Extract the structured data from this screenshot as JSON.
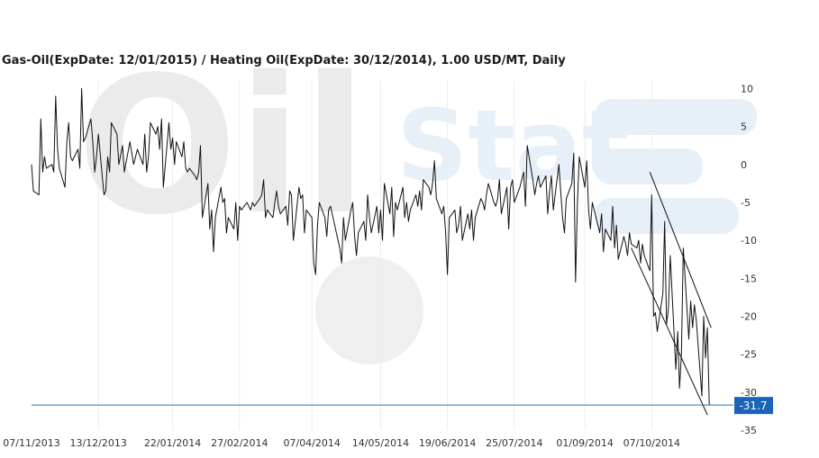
{
  "colors": {
    "series": "#111111",
    "current_line": "#2f6fb5",
    "current_badge": "#1a63b6",
    "gridline": "#ececec",
    "watermark_gray": "#ebebeb",
    "watermark_blue": "#e7f0f8"
  },
  "watermark": {
    "text1": "Oil",
    "text2": "Stat"
  },
  "chart_data": {
    "type": "line",
    "title": "Gas-Oil(ExpDate: 12/01/2015) / Heating Oil(ExpDate: 30/12/2014), 1.00 USD/MT, Daily",
    "x_tick_labels": [
      "07/11/2013",
      "13/12/2013",
      "22/01/2014",
      "27/02/2014",
      "07/04/2014",
      "14/05/2014",
      "19/06/2014",
      "25/07/2014",
      "01/09/2014",
      "07/10/2014"
    ],
    "y_ticks": [
      10,
      5,
      0,
      -5,
      -10,
      -15,
      -20,
      -25,
      -30,
      -35
    ],
    "ylim": [
      -35,
      11
    ],
    "xlim": [
      "2013-11-07",
      "2014-11-20"
    ],
    "grid": "vertical",
    "y_axis_position": "right",
    "current_value": -31.7,
    "current_value_label": "-31.7",
    "series": [
      {
        "points": [
          [
            "2013-11-07",
            0
          ],
          [
            "2013-11-08",
            -3.5
          ],
          [
            "2013-11-11",
            -4
          ],
          [
            "2013-11-12",
            6
          ],
          [
            "2013-11-13",
            -1
          ],
          [
            "2013-11-14",
            1
          ],
          [
            "2013-11-15",
            -0.5
          ],
          [
            "2013-11-18",
            0
          ],
          [
            "2013-11-19",
            -1
          ],
          [
            "2013-11-20",
            9
          ],
          [
            "2013-11-21",
            2
          ],
          [
            "2013-11-22",
            -0.5
          ],
          [
            "2013-11-25",
            -3
          ],
          [
            "2013-11-26",
            3
          ],
          [
            "2013-11-27",
            5.5
          ],
          [
            "2013-11-28",
            1
          ],
          [
            "2013-11-29",
            0.5
          ],
          [
            "2013-12-02",
            2
          ],
          [
            "2013-12-03",
            -0.5
          ],
          [
            "2013-12-04",
            10
          ],
          [
            "2013-12-05",
            3
          ],
          [
            "2013-12-06",
            3.5
          ],
          [
            "2013-12-09",
            6
          ],
          [
            "2013-12-10",
            3
          ],
          [
            "2013-12-11",
            -1
          ],
          [
            "2013-12-12",
            1
          ],
          [
            "2013-12-13",
            4
          ],
          [
            "2013-12-16",
            -4
          ],
          [
            "2013-12-17",
            -3.5
          ],
          [
            "2013-12-18",
            1
          ],
          [
            "2013-12-19",
            -1
          ],
          [
            "2013-12-20",
            5.5
          ],
          [
            "2013-12-23",
            4
          ],
          [
            "2013-12-24",
            0
          ],
          [
            "2013-12-26",
            2.5
          ],
          [
            "2013-12-27",
            -1
          ],
          [
            "2013-12-30",
            3
          ],
          [
            "2014-01-01",
            0
          ],
          [
            "2014-01-03",
            2
          ],
          [
            "2014-01-06",
            0
          ],
          [
            "2014-01-07",
            4
          ],
          [
            "2014-01-08",
            -1
          ],
          [
            "2014-01-09",
            1
          ],
          [
            "2014-01-10",
            5.5
          ],
          [
            "2014-01-13",
            4
          ],
          [
            "2014-01-14",
            5
          ],
          [
            "2014-01-15",
            2
          ],
          [
            "2014-01-16",
            6
          ],
          [
            "2014-01-17",
            -3
          ],
          [
            "2014-01-20",
            5.5
          ],
          [
            "2014-01-21",
            2
          ],
          [
            "2014-01-22",
            3.5
          ],
          [
            "2014-01-23",
            0
          ],
          [
            "2014-01-24",
            3
          ],
          [
            "2014-01-27",
            1
          ],
          [
            "2014-01-28",
            3
          ],
          [
            "2014-01-29",
            -0.5
          ],
          [
            "2014-01-30",
            -1
          ],
          [
            "2014-01-31",
            -0.5
          ],
          [
            "2014-02-03",
            -1.5
          ],
          [
            "2014-02-04",
            -2
          ],
          [
            "2014-02-05",
            -1
          ],
          [
            "2014-02-06",
            2.5
          ],
          [
            "2014-02-07",
            -7
          ],
          [
            "2014-02-10",
            -2.5
          ],
          [
            "2014-02-11",
            -8.5
          ],
          [
            "2014-02-12",
            -6
          ],
          [
            "2014-02-13",
            -11.5
          ],
          [
            "2014-02-14",
            -7
          ],
          [
            "2014-02-17",
            -3
          ],
          [
            "2014-02-18",
            -5
          ],
          [
            "2014-02-19",
            -4.5
          ],
          [
            "2014-02-20",
            -9
          ],
          [
            "2014-02-21",
            -7
          ],
          [
            "2014-02-24",
            -8.5
          ],
          [
            "2014-02-25",
            -5
          ],
          [
            "2014-02-26",
            -10
          ],
          [
            "2014-02-27",
            -5.5
          ],
          [
            "2014-02-28",
            -6
          ],
          [
            "2014-03-03",
            -5
          ],
          [
            "2014-03-04",
            -5.5
          ],
          [
            "2014-03-05",
            -6
          ],
          [
            "2014-03-06",
            -5
          ],
          [
            "2014-03-07",
            -5.5
          ],
          [
            "2014-03-10",
            -4.5
          ],
          [
            "2014-03-11",
            -4
          ],
          [
            "2014-03-12",
            -2
          ],
          [
            "2014-03-13",
            -7
          ],
          [
            "2014-03-14",
            -6
          ],
          [
            "2014-03-17",
            -7
          ],
          [
            "2014-03-18",
            -5
          ],
          [
            "2014-03-19",
            -3.5
          ],
          [
            "2014-03-20",
            -5.5
          ],
          [
            "2014-03-21",
            -6.5
          ],
          [
            "2014-03-24",
            -5.5
          ],
          [
            "2014-03-25",
            -8
          ],
          [
            "2014-03-26",
            -3.5
          ],
          [
            "2014-03-27",
            -4
          ],
          [
            "2014-03-28",
            -10
          ],
          [
            "2014-03-31",
            -3
          ],
          [
            "2014-04-01",
            -4.5
          ],
          [
            "2014-04-02",
            -4
          ],
          [
            "2014-04-03",
            -9
          ],
          [
            "2014-04-04",
            -6
          ],
          [
            "2014-04-07",
            -7
          ],
          [
            "2014-04-08",
            -13
          ],
          [
            "2014-04-09",
            -14.5
          ],
          [
            "2014-04-10",
            -8
          ],
          [
            "2014-04-11",
            -5
          ],
          [
            "2014-04-14",
            -7
          ],
          [
            "2014-04-15",
            -9.5
          ],
          [
            "2014-04-16",
            -6
          ],
          [
            "2014-04-17",
            -5.5
          ],
          [
            "2014-04-22",
            -11
          ],
          [
            "2014-04-23",
            -13
          ],
          [
            "2014-04-24",
            -7
          ],
          [
            "2014-04-25",
            -10
          ],
          [
            "2014-04-28",
            -6
          ],
          [
            "2014-04-29",
            -5
          ],
          [
            "2014-04-30",
            -9.5
          ],
          [
            "2014-05-01",
            -12
          ],
          [
            "2014-05-02",
            -9
          ],
          [
            "2014-05-05",
            -7.5
          ],
          [
            "2014-05-06",
            -10
          ],
          [
            "2014-05-07",
            -4
          ],
          [
            "2014-05-08",
            -7
          ],
          [
            "2014-05-09",
            -9
          ],
          [
            "2014-05-12",
            -5.5
          ],
          [
            "2014-05-13",
            -9
          ],
          [
            "2014-05-14",
            -6
          ],
          [
            "2014-05-15",
            -10
          ],
          [
            "2014-05-16",
            -2.5
          ],
          [
            "2014-05-19",
            -6.5
          ],
          [
            "2014-05-20",
            -3
          ],
          [
            "2014-05-21",
            -9.5
          ],
          [
            "2014-05-22",
            -5
          ],
          [
            "2014-05-23",
            -6
          ],
          [
            "2014-05-26",
            -3
          ],
          [
            "2014-05-27",
            -7
          ],
          [
            "2014-05-28",
            -5
          ],
          [
            "2014-05-29",
            -7.5
          ],
          [
            "2014-05-30",
            -6
          ],
          [
            "2014-06-02",
            -4
          ],
          [
            "2014-06-03",
            -5.5
          ],
          [
            "2014-06-04",
            -3.5
          ],
          [
            "2014-06-05",
            -6
          ],
          [
            "2014-06-06",
            -2
          ],
          [
            "2014-06-09",
            -3
          ],
          [
            "2014-06-10",
            -4
          ],
          [
            "2014-06-11",
            -2.5
          ],
          [
            "2014-06-12",
            0.5
          ],
          [
            "2014-06-13",
            -4.5
          ],
          [
            "2014-06-16",
            -6.5
          ],
          [
            "2014-06-17",
            -5.5
          ],
          [
            "2014-06-18",
            -9
          ],
          [
            "2014-06-19",
            -14.5
          ],
          [
            "2014-06-20",
            -7
          ],
          [
            "2014-06-23",
            -6
          ],
          [
            "2014-06-24",
            -9
          ],
          [
            "2014-06-25",
            -8
          ],
          [
            "2014-06-26",
            -5.5
          ],
          [
            "2014-06-27",
            -10
          ],
          [
            "2014-06-30",
            -6.5
          ],
          [
            "2014-07-01",
            -8.5
          ],
          [
            "2014-07-02",
            -6
          ],
          [
            "2014-07-03",
            -10
          ],
          [
            "2014-07-04",
            -7
          ],
          [
            "2014-07-07",
            -4.5
          ],
          [
            "2014-07-08",
            -5
          ],
          [
            "2014-07-09",
            -6
          ],
          [
            "2014-07-10",
            -4
          ],
          [
            "2014-07-11",
            -2.5
          ],
          [
            "2014-07-14",
            -5
          ],
          [
            "2014-07-15",
            -5.5
          ],
          [
            "2014-07-16",
            -4.5
          ],
          [
            "2014-07-17",
            -2
          ],
          [
            "2014-07-18",
            -6.5
          ],
          [
            "2014-07-21",
            -3
          ],
          [
            "2014-07-22",
            -8.5
          ],
          [
            "2014-07-23",
            -3
          ],
          [
            "2014-07-24",
            -2
          ],
          [
            "2014-07-25",
            -5
          ],
          [
            "2014-07-28",
            -3
          ],
          [
            "2014-07-29",
            -2
          ],
          [
            "2014-07-30",
            -1
          ],
          [
            "2014-07-31",
            -5.5
          ],
          [
            "2014-08-01",
            2.5
          ],
          [
            "2014-08-04",
            -2
          ],
          [
            "2014-08-05",
            -4
          ],
          [
            "2014-08-06",
            -2.5
          ],
          [
            "2014-08-07",
            -1.5
          ],
          [
            "2014-08-08",
            -3
          ],
          [
            "2014-08-11",
            -1.5
          ],
          [
            "2014-08-12",
            -6.5
          ],
          [
            "2014-08-13",
            -3.5
          ],
          [
            "2014-08-14",
            -1.5
          ],
          [
            "2014-08-15",
            -6
          ],
          [
            "2014-08-18",
            0
          ],
          [
            "2014-08-19",
            -3.5
          ],
          [
            "2014-08-20",
            -7
          ],
          [
            "2014-08-21",
            -9
          ],
          [
            "2014-08-22",
            -4.5
          ],
          [
            "2014-08-25",
            -2.5
          ],
          [
            "2014-08-26",
            1.5
          ],
          [
            "2014-08-27",
            -15.5
          ],
          [
            "2014-08-28",
            -5
          ],
          [
            "2014-08-29",
            1
          ],
          [
            "2014-09-01",
            -3
          ],
          [
            "2014-09-02",
            0.5
          ],
          [
            "2014-09-03",
            -6
          ],
          [
            "2014-09-04",
            -8.5
          ],
          [
            "2014-09-05",
            -5
          ],
          [
            "2014-09-08",
            -8
          ],
          [
            "2014-09-09",
            -9
          ],
          [
            "2014-09-10",
            -6.5
          ],
          [
            "2014-09-11",
            -11.5
          ],
          [
            "2014-09-12",
            -8.5
          ],
          [
            "2014-09-15",
            -10
          ],
          [
            "2014-09-16",
            -5.5
          ],
          [
            "2014-09-17",
            -11
          ],
          [
            "2014-09-18",
            -8
          ],
          [
            "2014-09-19",
            -12.5
          ],
          [
            "2014-09-22",
            -9.5
          ],
          [
            "2014-09-23",
            -10.5
          ],
          [
            "2014-09-24",
            -12
          ],
          [
            "2014-09-25",
            -9
          ],
          [
            "2014-09-26",
            -10.5
          ],
          [
            "2014-09-29",
            -11
          ],
          [
            "2014-09-30",
            -10
          ],
          [
            "2014-10-01",
            -13
          ],
          [
            "2014-10-02",
            -10.5
          ],
          [
            "2014-10-03",
            -12
          ],
          [
            "2014-10-06",
            -14
          ],
          [
            "2014-10-07",
            -4
          ],
          [
            "2014-10-08",
            -20
          ],
          [
            "2014-10-09",
            -19.5
          ],
          [
            "2014-10-10",
            -22
          ],
          [
            "2014-10-13",
            -17
          ],
          [
            "2014-10-14",
            -7.5
          ],
          [
            "2014-10-15",
            -21
          ],
          [
            "2014-10-16",
            -19
          ],
          [
            "2014-10-17",
            -12
          ],
          [
            "2014-10-20",
            -27
          ],
          [
            "2014-10-21",
            -22
          ],
          [
            "2014-10-22",
            -29.5
          ],
          [
            "2014-10-23",
            -25
          ],
          [
            "2014-10-24",
            -11
          ],
          [
            "2014-10-27",
            -23
          ],
          [
            "2014-10-28",
            -18
          ],
          [
            "2014-10-29",
            -21.5
          ],
          [
            "2014-10-30",
            -18.5
          ],
          [
            "2014-10-31",
            -20.5
          ],
          [
            "2014-11-03",
            -30.5
          ],
          [
            "2014-11-04",
            -20
          ],
          [
            "2014-11-05",
            -25.5
          ],
          [
            "2014-11-06",
            -21.5
          ],
          [
            "2014-11-07",
            -31.7
          ]
        ]
      }
    ],
    "trend_channel": [
      {
        "from": [
          "2014-09-26",
          -11
        ],
        "to": [
          "2014-11-06",
          -33
        ]
      },
      {
        "from": [
          "2014-10-06",
          -1
        ],
        "to": [
          "2014-11-08",
          -21.5
        ]
      }
    ]
  }
}
